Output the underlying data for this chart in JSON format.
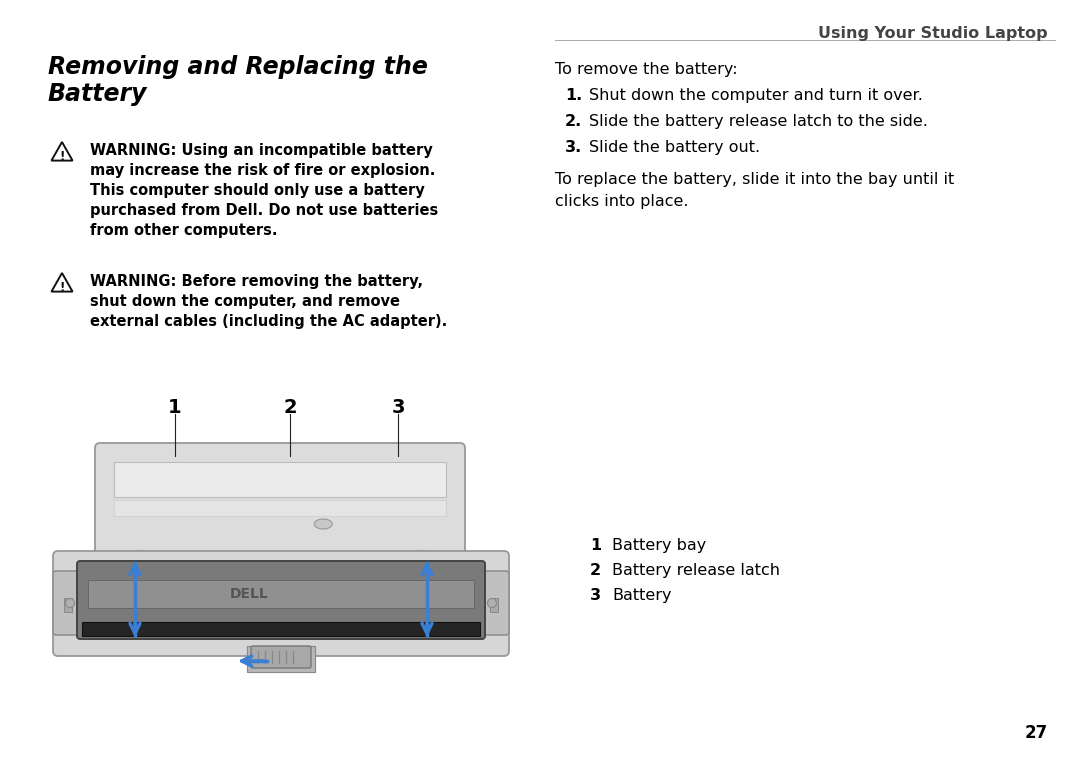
{
  "bg_color": "#ffffff",
  "title_line1": "Removing and Replacing the",
  "title_line2": "Battery",
  "header_right": "Using Your Studio Laptop",
  "warning1_lines": [
    "WARNING: Using an incompatible battery",
    "may increase the risk of fire or explosion.",
    "This computer should only use a battery",
    "purchased from Dell. Do not use batteries",
    "from other computers."
  ],
  "warning2_lines": [
    "WARNING: Before removing the battery,",
    "shut down the computer, and remove",
    "external cables (including the AC adapter)."
  ],
  "to_remove": "To remove the battery:",
  "steps": [
    "Shut down the computer and turn it over.",
    "Slide the battery release latch to the side.",
    "Slide the battery out."
  ],
  "to_replace_line1": "To replace the battery, slide it into the bay until it",
  "to_replace_line2": "clicks into place.",
  "legend": [
    "Battery bay",
    "Battery release latch",
    "Battery"
  ],
  "page_number": "27",
  "arrow_color": "#3a7fd4",
  "text_color": "#000000",
  "header_color": "#444444",
  "body_light": "#e0e0e0",
  "body_mid": "#c8c8c8",
  "body_dark": "#b0b0b0",
  "batt_top": "#888888",
  "batt_mid": "#777777",
  "batt_dark": "#444444",
  "batt_black": "#222222"
}
